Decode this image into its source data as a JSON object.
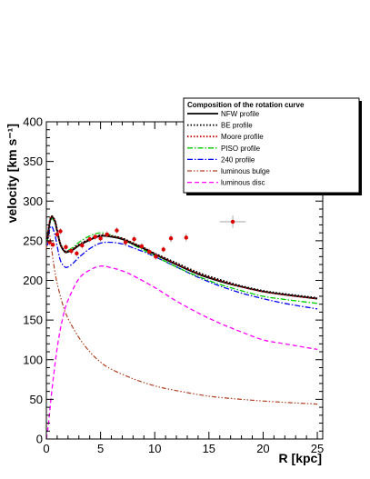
{
  "chart_data": {
    "type": "line",
    "xlabel": "R [kpc]",
    "ylabel": "velocity [km s⁻¹]",
    "xlim": [
      0,
      25.5
    ],
    "ylim": [
      0,
      400
    ],
    "xticks": [
      0,
      5,
      10,
      15,
      20,
      25
    ],
    "yticks": [
      0,
      50,
      100,
      150,
      200,
      250,
      300,
      350,
      400
    ],
    "grid": false,
    "legend": {
      "title": "Composition of the rotation curve",
      "placement": "top-right"
    },
    "series": [
      {
        "name": "NFW profile",
        "color": "#000000",
        "style": "solid",
        "x": [
          0.1,
          0.3,
          0.5,
          0.8,
          1.0,
          1.3,
          1.7,
          2.0,
          2.5,
          3.0,
          4.0,
          5.0,
          6.0,
          7.0,
          8.0,
          9.0,
          10.0,
          12.0,
          14.0,
          16.0,
          18.0,
          20.0,
          22.0,
          25.0
        ],
        "y": [
          252,
          272,
          280,
          274,
          262,
          245,
          236,
          236,
          239,
          244,
          251,
          256,
          255,
          252,
          246,
          240,
          233,
          220,
          208,
          199,
          192,
          186,
          182,
          177
        ]
      },
      {
        "name": "BE profile",
        "color": "#000000",
        "style": "dotted",
        "x": [
          0.1,
          0.3,
          0.5,
          0.8,
          1.0,
          1.3,
          1.7,
          2.0,
          2.5,
          3.0,
          4.0,
          5.0,
          6.0,
          7.0,
          8.0,
          9.0,
          10.0,
          12.0,
          14.0,
          16.0,
          18.0,
          20.0,
          22.0,
          25.0
        ],
        "y": [
          253,
          273,
          281,
          275,
          263,
          246,
          237,
          237,
          240,
          245,
          252,
          257,
          256,
          253,
          247,
          241,
          234,
          222,
          210,
          201,
          193,
          187,
          183,
          178
        ]
      },
      {
        "name": "Moore profile",
        "color": "#cc0000",
        "style": "dotted",
        "x": [
          0.1,
          0.3,
          0.5,
          0.8,
          1.0,
          1.3,
          1.7,
          2.0,
          2.5,
          3.0,
          4.0,
          5.0,
          6.0,
          7.0,
          8.0,
          9.0,
          10.0,
          12.0,
          14.0,
          16.0,
          18.0,
          20.0,
          22.0,
          25.0
        ],
        "y": [
          254,
          274,
          281,
          275,
          263,
          246,
          237,
          237,
          240,
          245,
          252,
          257,
          256,
          253,
          247,
          241,
          234,
          221,
          209,
          200,
          192,
          186,
          182,
          177
        ]
      },
      {
        "name": "PISO profile",
        "color": "#00cc00",
        "style": "dashdot",
        "x": [
          0.1,
          0.3,
          0.5,
          0.8,
          1.0,
          1.3,
          1.7,
          2.0,
          2.5,
          3.0,
          4.0,
          5.0,
          6.0,
          7.0,
          8.0,
          9.0,
          10.0,
          12.0,
          14.0,
          16.0,
          18.0,
          20.0,
          22.0,
          25.0
        ],
        "y": [
          250,
          270,
          278,
          272,
          261,
          245,
          237,
          238,
          242,
          248,
          256,
          260,
          257,
          252,
          245,
          238,
          231,
          217,
          205,
          195,
          187,
          180,
          176,
          171
        ]
      },
      {
        "name": "240 profile",
        "color": "#0000ee",
        "style": "dashdot",
        "x": [
          0.1,
          0.3,
          0.5,
          0.8,
          1.0,
          1.3,
          1.7,
          2.0,
          2.5,
          3.0,
          4.0,
          5.0,
          6.0,
          7.0,
          8.0,
          9.0,
          10.0,
          12.0,
          14.0,
          16.0,
          18.0,
          20.0,
          22.0,
          25.0
        ],
        "y": [
          244,
          264,
          268,
          257,
          243,
          225,
          217,
          217,
          222,
          229,
          240,
          247,
          248,
          246,
          241,
          236,
          230,
          217,
          204,
          193,
          184,
          177,
          171,
          164
        ]
      },
      {
        "name": "luminous bulge",
        "color": "#b04020",
        "style": "dashdotdot",
        "x": [
          0.0,
          0.2,
          0.4,
          0.6,
          0.8,
          1.0,
          1.5,
          2.0,
          3.0,
          4.0,
          5.0,
          6.0,
          8.0,
          10.0,
          12.0,
          15.0,
          18.0,
          21.0,
          25.0
        ],
        "y": [
          240,
          262,
          248,
          228,
          210,
          196,
          170,
          152,
          128,
          110,
          97,
          88,
          76,
          67,
          61,
          54,
          50,
          47,
          44
        ]
      },
      {
        "name": "luminous disc",
        "color": "#ff00ff",
        "style": "dashed",
        "x": [
          0.0,
          0.2,
          0.5,
          1.0,
          1.5,
          2.0,
          3.0,
          4.0,
          5.0,
          6.0,
          7.0,
          8.0,
          10.0,
          12.0,
          14.0,
          16.0,
          18.0,
          20.0,
          22.0,
          25.0
        ],
        "y": [
          0,
          20,
          60,
          115,
          152,
          175,
          202,
          213,
          218,
          216,
          212,
          206,
          191,
          174,
          159,
          146,
          135,
          125,
          120,
          113
        ]
      }
    ],
    "observed": {
      "color": "#dd0000",
      "x": [
        0.3,
        0.6,
        1.0,
        1.3,
        1.8,
        2.3,
        2.8,
        3.3,
        4.0,
        4.5,
        5.0,
        5.6,
        6.5,
        7.3,
        8.1,
        8.8,
        9.5,
        10.1,
        10.8,
        11.5,
        12.9,
        17.2
      ],
      "y": [
        248,
        245,
        258,
        262,
        242,
        237,
        234,
        244,
        252,
        255,
        253,
        258,
        263,
        248,
        252,
        243,
        236,
        230,
        239,
        253,
        254,
        274
      ],
      "yerr": [
        4,
        4,
        4,
        4,
        4,
        4,
        4,
        4,
        4,
        4,
        4,
        4,
        4,
        4,
        4,
        4,
        4,
        4,
        4,
        5,
        5,
        8
      ],
      "xerr": [
        0,
        0,
        0,
        0,
        0,
        0,
        0,
        0,
        0,
        0,
        0,
        0,
        0,
        0,
        0,
        0,
        0,
        0,
        0,
        0,
        0,
        1.2
      ]
    }
  }
}
